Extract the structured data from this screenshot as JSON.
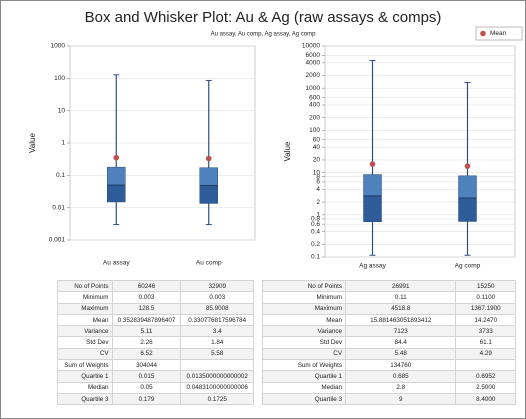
{
  "title": "Box and Whisker Plot: Au & Ag (raw assays & comps)",
  "subtitle": "Au assay, Au comp, Ag assay, Ag comp",
  "mean_legend": {
    "name": "Mean",
    "color": "#c0504d"
  },
  "chart_data": [
    {
      "type": "box",
      "ylabel": "Value",
      "log": true,
      "grid": true,
      "categories": [
        "Au assay",
        "Au comp"
      ],
      "ylim": [
        0.001,
        1000
      ],
      "yticks": [
        0.001,
        0.01,
        0.1,
        1,
        10,
        100,
        1000
      ],
      "colors": {
        "upper": "#4f81bd",
        "lower": "#2e5c99",
        "whisker": "#2f4f7f"
      },
      "boxes": [
        {
          "min": 0.003,
          "q1": 0.015,
          "median": 0.05,
          "q3": 0.179,
          "max": 128.5,
          "mean": 0.353
        },
        {
          "min": 0.003,
          "q1": 0.0135,
          "median": 0.0483,
          "q3": 0.1725,
          "max": 85.9,
          "mean": 0.331
        }
      ]
    },
    {
      "type": "box",
      "ylabel": "Value",
      "log": true,
      "grid": true,
      "categories": [
        "Ag assay",
        "Ag comp"
      ],
      "ylim": [
        0.1,
        10000
      ],
      "yticks": [
        0.1,
        0.2,
        0.4,
        0.6,
        0.8,
        1,
        2,
        4,
        6,
        8,
        10,
        20,
        40,
        60,
        100,
        200,
        400,
        600,
        1000,
        2000,
        4000,
        6000,
        10000
      ],
      "colors": {
        "upper": "#4f81bd",
        "lower": "#2e5c99",
        "whisker": "#2f4f7f"
      },
      "boxes": [
        {
          "min": 0.11,
          "q1": 0.685,
          "median": 2.8,
          "q3": 9,
          "max": 4518.8,
          "mean": 15.88
        },
        {
          "min": 0.11,
          "q1": 0.6952,
          "median": 2.5,
          "q3": 8.4,
          "max": 1367.19,
          "mean": 14.247
        }
      ]
    }
  ],
  "tables": [
    {
      "rows": [
        [
          "No of Points",
          "60246",
          "32909"
        ],
        [
          "Minimum",
          "0.003",
          "0.003"
        ],
        [
          "Maximum",
          "128.5",
          "85.9008"
        ],
        [
          "Mean",
          "0.352839487896407",
          "0.330776817596784"
        ],
        [
          "Variance",
          "5.11",
          "3.4"
        ],
        [
          "Std Dev",
          "2.26",
          "1.84"
        ],
        [
          "CV",
          "6.52",
          "5.58"
        ],
        [
          "Sum of Weights",
          "304044",
          null
        ],
        [
          "Quartile 1",
          "0.015",
          "0.0135000000000002"
        ],
        [
          "Median",
          "0.05",
          "0.0483100000000006"
        ],
        [
          "Quartile 3",
          "0.179",
          "0.1725"
        ]
      ]
    },
    {
      "rows": [
        [
          "No of Points",
          "26991",
          "15250"
        ],
        [
          "Minimum",
          "0.11",
          "0.1100"
        ],
        [
          "Maximum",
          "4518.8",
          "1367.1900"
        ],
        [
          "Mean",
          "15.881463051893412",
          "14.2470"
        ],
        [
          "Variance",
          "7123",
          "3733"
        ],
        [
          "Std Dev",
          "84.4",
          "61.1"
        ],
        [
          "CV",
          "5.48",
          "4.29"
        ],
        [
          "Sum of Weights",
          "134760",
          null
        ],
        [
          "Quartile 1",
          "0.685",
          "0.6952"
        ],
        [
          "Median",
          "2.8",
          "2.5000"
        ],
        [
          "Quartile 3",
          "9",
          "8.4000"
        ]
      ]
    }
  ]
}
